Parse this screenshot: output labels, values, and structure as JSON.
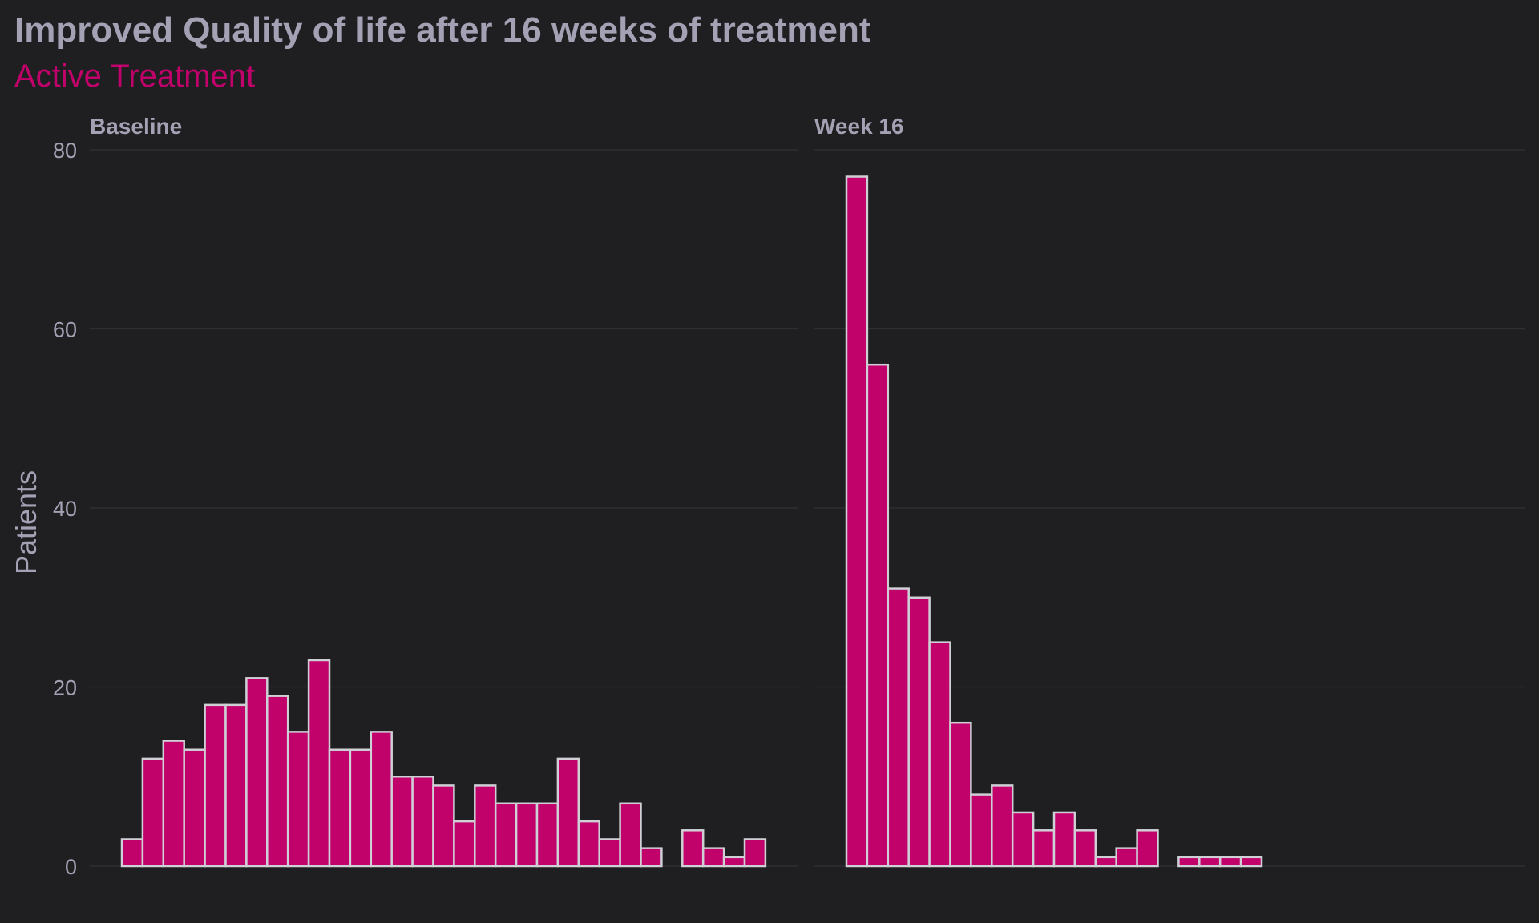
{
  "chart_data": {
    "type": "bar",
    "title": "Improved Quality of life after 16 weeks of treatment",
    "subtitle": "Active Treatment",
    "ylabel": "Patients",
    "ylim": [
      0,
      80
    ],
    "yticks": [
      0,
      20,
      40,
      60,
      80
    ],
    "grid": true,
    "colors": {
      "background": "#1f1f22",
      "bar_fill": "#c2026b",
      "bar_outline": "#cfcfd6",
      "text": "#a3a1b3",
      "subtitle": "#c2026b",
      "grid": "#2e2e33"
    },
    "panels": [
      {
        "label": "Baseline",
        "values": [
          3,
          12,
          14,
          13,
          18,
          18,
          21,
          19,
          15,
          23,
          13,
          13,
          15,
          10,
          10,
          9,
          5,
          9,
          7,
          7,
          7,
          12,
          5,
          3,
          7,
          2,
          0,
          4,
          2,
          1,
          3
        ]
      },
      {
        "label": "Week 16",
        "values": [
          77,
          56,
          31,
          30,
          25,
          16,
          8,
          9,
          6,
          4,
          6,
          4,
          1,
          2,
          4,
          0,
          1,
          1,
          1,
          1,
          0,
          0,
          0,
          0,
          0,
          0,
          0,
          0,
          0,
          0,
          0
        ]
      }
    ]
  }
}
